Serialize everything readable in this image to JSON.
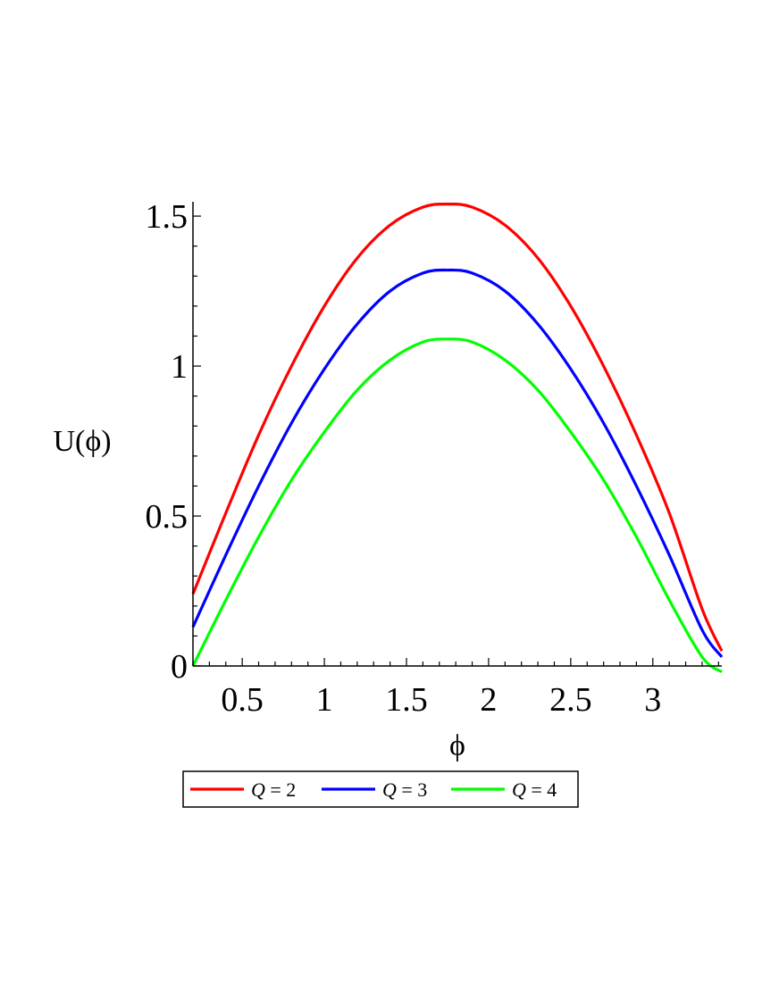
{
  "chart_data": {
    "type": "line",
    "title": "",
    "xlabel": "ϕ",
    "ylabel": "U(ϕ)",
    "xlim": [
      0.2,
      3.42
    ],
    "ylim": [
      0,
      1.53
    ],
    "x_ticks": [
      0.5,
      1,
      1.5,
      2,
      2.5,
      3
    ],
    "x_tick_labels": [
      "0.5",
      "1",
      "1.5",
      "2",
      "2.5",
      "3"
    ],
    "y_ticks": [
      0,
      0.5,
      1,
      1.5
    ],
    "y_tick_labels": [
      "0",
      "0.5",
      "1",
      "1.5"
    ],
    "grid": false,
    "legend_position": "bottom",
    "x": [
      0.2,
      0.4,
      0.6,
      0.8,
      1.0,
      1.2,
      1.4,
      1.6,
      1.75,
      1.9,
      2.1,
      2.3,
      2.5,
      2.7,
      2.9,
      3.1,
      3.3,
      3.42
    ],
    "series": [
      {
        "name_prefix": "Q",
        "name_value": "= 2",
        "color": "#ff0000",
        "values": [
          0.24,
          0.51,
          0.77,
          1.0,
          1.2,
          1.36,
          1.47,
          1.53,
          1.54,
          1.53,
          1.47,
          1.36,
          1.2,
          1.0,
          0.77,
          0.51,
          0.19,
          0.05
        ]
      },
      {
        "name_prefix": "Q",
        "name_value": "= 3",
        "color": "#0000ff",
        "values": [
          0.13,
          0.37,
          0.6,
          0.81,
          0.99,
          1.14,
          1.25,
          1.31,
          1.32,
          1.31,
          1.25,
          1.14,
          0.99,
          0.81,
          0.6,
          0.37,
          0.12,
          0.03
        ]
      },
      {
        "name_prefix": "Q",
        "name_value": "= 4",
        "color": "#00ff00",
        "values": [
          0.0,
          0.22,
          0.43,
          0.62,
          0.78,
          0.92,
          1.02,
          1.08,
          1.09,
          1.08,
          1.02,
          0.92,
          0.78,
          0.62,
          0.43,
          0.22,
          0.03,
          -0.02
        ]
      }
    ]
  }
}
